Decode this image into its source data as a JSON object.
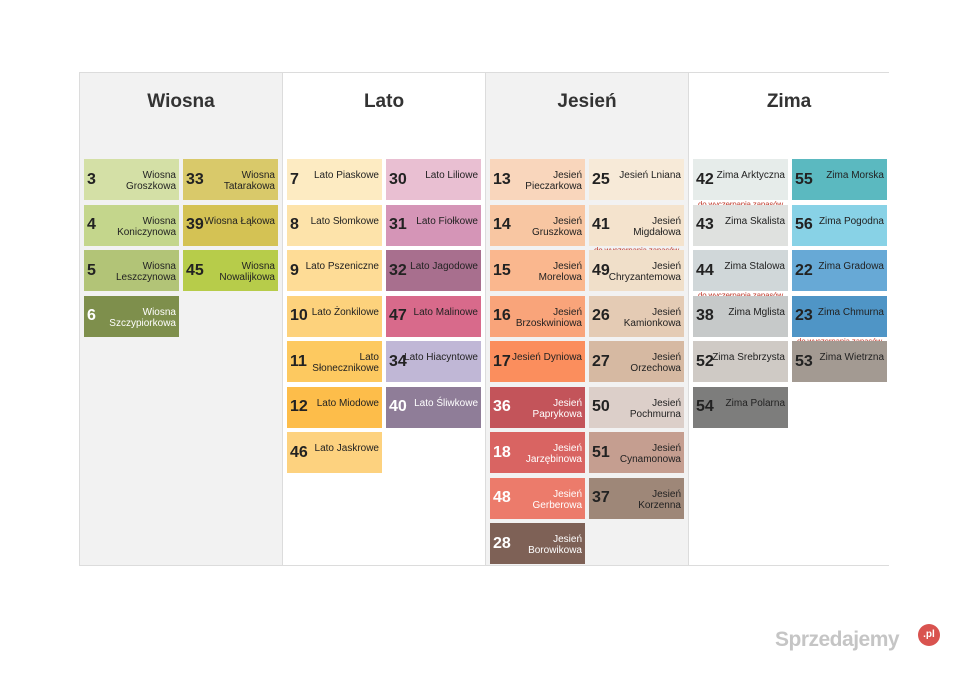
{
  "seasons": [
    {
      "title": "Wiosna",
      "columns": [
        [
          {
            "num": "3",
            "name": "Wiosna Groszkowa",
            "color": "#d4e0a6"
          },
          {
            "num": "4",
            "name": "Wiosna Koniczynowa",
            "color": "#c4d68c"
          },
          {
            "num": "5",
            "name": "Wiosna Leszczynowa",
            "color": "#b2c477"
          },
          {
            "num": "6",
            "name": "Wiosna Szczypiorkowa",
            "color": "#7e8f4c",
            "light": true
          }
        ],
        [
          {
            "num": "33",
            "name": "Wiosna Tatarakowa",
            "color": "#d9c96a"
          },
          {
            "num": "39",
            "name": "Wiosna Łąkowa",
            "color": "#d4c254"
          },
          {
            "num": "45",
            "name": "Wiosna Nowalijkowa",
            "color": "#b7cc4a"
          }
        ]
      ]
    },
    {
      "title": "Lato",
      "columns": [
        [
          {
            "num": "7",
            "name": "Lato Piaskowe",
            "color": "#fdebc2"
          },
          {
            "num": "8",
            "name": "Lato Słomkowe",
            "color": "#fde3aa"
          },
          {
            "num": "9",
            "name": "Lato Pszeniczne",
            "color": "#fedc96"
          },
          {
            "num": "10",
            "name": "Lato Żonkilowe",
            "color": "#fdd27c"
          },
          {
            "num": "11",
            "name": "Lato Słonecznikowe",
            "color": "#fdc960"
          },
          {
            "num": "12",
            "name": "Lato Miodowe",
            "color": "#fdbd4a"
          },
          {
            "num": "46",
            "name": "Lato Jaskrowe",
            "color": "#fdd27f"
          }
        ],
        [
          {
            "num": "30",
            "name": "Lato Liliowe",
            "color": "#e9bfd2"
          },
          {
            "num": "31",
            "name": "Lato Fiołkowe",
            "color": "#d595b7"
          },
          {
            "num": "32",
            "name": "Lato Jagodowe",
            "color": "#a86f8e"
          },
          {
            "num": "47",
            "name": "Lato Malinowe",
            "color": "#d86a8b"
          },
          {
            "num": "34",
            "name": "Lato Hiacyntowe",
            "color": "#c0b7d6"
          },
          {
            "num": "40",
            "name": "Lato Śliwkowe",
            "color": "#8f7d98",
            "light": true
          }
        ]
      ]
    },
    {
      "title": "Jesień",
      "columns": [
        [
          {
            "num": "13",
            "name": "Jesień Pieczarkowa",
            "color": "#f9d6bc"
          },
          {
            "num": "14",
            "name": "Jesień Gruszkowa",
            "color": "#f8c6a2"
          },
          {
            "num": "15",
            "name": "Jesień Morelowa",
            "color": "#fab78e"
          },
          {
            "num": "16",
            "name": "Jesień Brzoskwiniowa",
            "color": "#f9a47a"
          },
          {
            "num": "17",
            "name": "Jesień Dyniowa",
            "color": "#fb8e5d"
          },
          {
            "num": "36",
            "name": "Jesień Paprykowa",
            "color": "#c3545a",
            "light": true
          },
          {
            "num": "18",
            "name": "Jesień Jarzębinowa",
            "color": "#d96462",
            "light": true
          },
          {
            "num": "48",
            "name": "Jesień Gerberowa",
            "color": "#ec7b6b",
            "light": true
          },
          {
            "num": "28",
            "name": "Jesień Borowikowa",
            "color": "#7e6156",
            "light": true
          }
        ],
        [
          {
            "num": "25",
            "name": "Jesień Lniana",
            "color": "#f7ead8"
          },
          {
            "num": "41",
            "name": "Jesień Migdałowa",
            "color": "#f4e3cd",
            "note": "do wyczerpania zapasów"
          },
          {
            "num": "49",
            "name": "Jesień Chryzantemowa",
            "color": "#f0dfc9"
          },
          {
            "num": "26",
            "name": "Jesień Kamionkowa",
            "color": "#e4cbb4"
          },
          {
            "num": "27",
            "name": "Jesień Orzechowa",
            "color": "#d6b9a2"
          },
          {
            "num": "50",
            "name": "Jesień Pochmurna",
            "color": "#dccfc9"
          },
          {
            "num": "51",
            "name": "Jesień Cynamonowa",
            "color": "#c59e90"
          },
          {
            "num": "37",
            "name": "Jesień Korzenna",
            "color": "#9e8778"
          }
        ]
      ]
    },
    {
      "title": "Zima",
      "columns": [
        [
          {
            "num": "42",
            "name": "Zima Arktyczna",
            "color": "#e6ecea",
            "note": "do wyczerpania zapasów"
          },
          {
            "num": "43",
            "name": "Zima Skalista",
            "color": "#dfe1df"
          },
          {
            "num": "44",
            "name": "Zima Stalowa",
            "color": "#d0d7d9",
            "note": "do wyczerpania zapasów"
          },
          {
            "num": "38",
            "name": "Zima Mglista",
            "color": "#c6c9c9"
          },
          {
            "num": "52",
            "name": "Zima Srebrzysta",
            "color": "#cfcac5"
          },
          {
            "num": "54",
            "name": "Zima Polarna",
            "color": "#7d7d7c"
          }
        ],
        [
          {
            "num": "55",
            "name": "Zima Morska",
            "color": "#5bb9c0"
          },
          {
            "num": "56",
            "name": "Zima Pogodna",
            "color": "#88d2e6"
          },
          {
            "num": "22",
            "name": "Zima Gradowa",
            "color": "#67a9d6"
          },
          {
            "num": "23",
            "name": "Zima Chmurna",
            "color": "#4f95c6",
            "note": "do wyczerpania zapasów"
          },
          {
            "num": "53",
            "name": "Zima Wietrzna",
            "color": "#a39a92"
          }
        ]
      ]
    }
  ],
  "watermark": {
    "text": "Sprzedajemy",
    "badge": ".pl"
  }
}
